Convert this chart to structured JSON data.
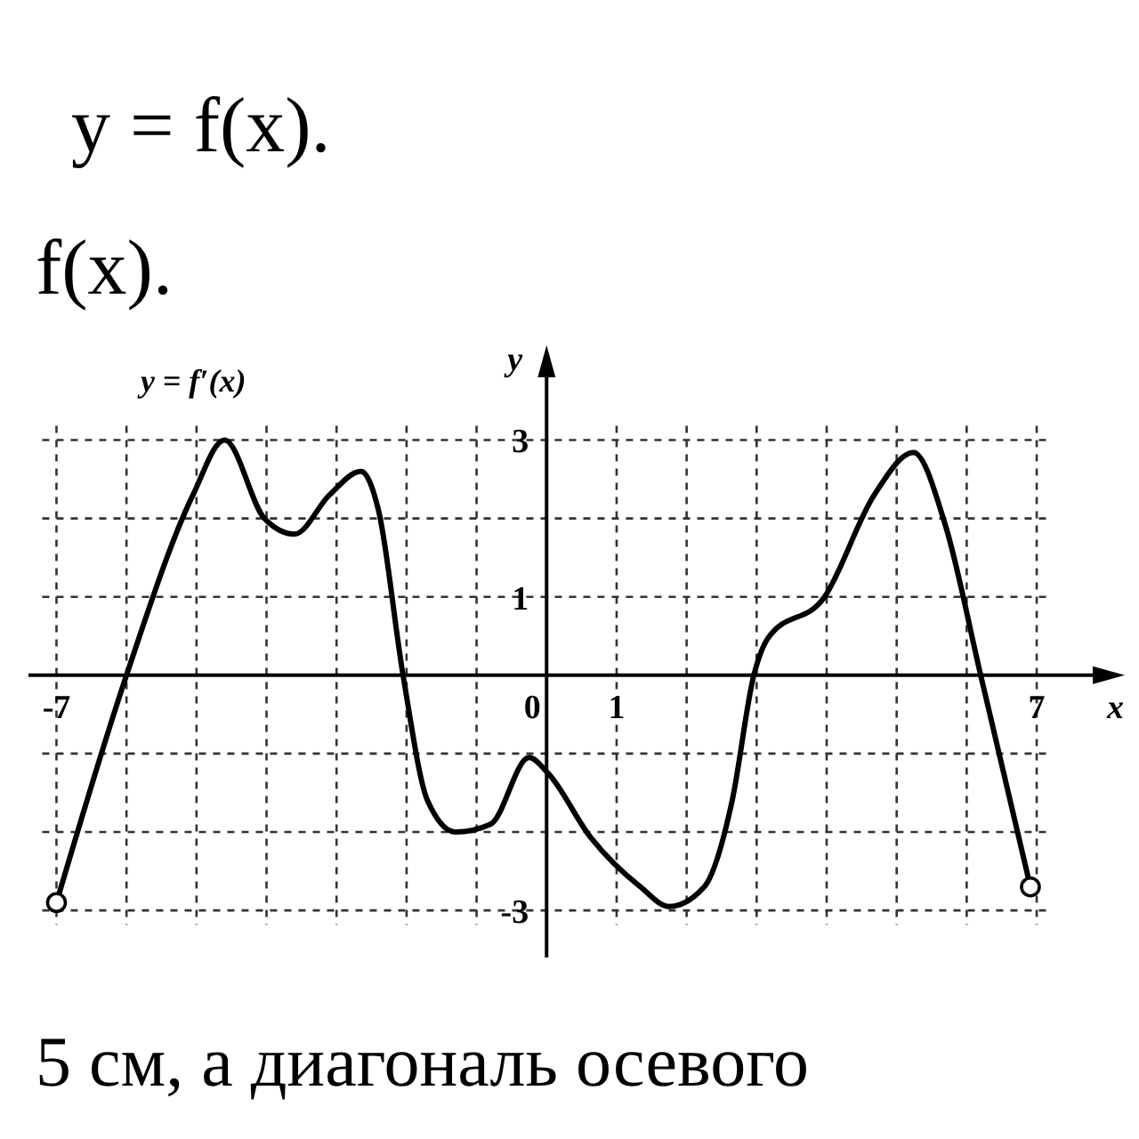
{
  "chart_data": {
    "type": "line",
    "title": "y = f′(x)",
    "xlabel": "x",
    "ylabel": "y",
    "annotations": [
      "y = f(x).",
      "f(x).",
      "5 см, а диагональ осевого"
    ],
    "xlim": [
      -7.4,
      7.8
    ],
    "ylim": [
      -3.6,
      3.8
    ],
    "xticks": [
      -7,
      {
        "value": -6,
        "label": null
      },
      {
        "value": -5,
        "label": null
      },
      {
        "value": -4,
        "label": null
      },
      {
        "value": -3,
        "label": null
      },
      {
        "value": -2,
        "label": null
      },
      {
        "value": -1,
        "label": null
      },
      0,
      1,
      {
        "value": 2,
        "label": null
      },
      {
        "value": 3,
        "label": null
      },
      {
        "value": 4,
        "label": null
      },
      {
        "value": 5,
        "label": null
      },
      {
        "value": 6,
        "label": null
      },
      7
    ],
    "yticks": [
      -3,
      {
        "value": -2,
        "label": null
      },
      {
        "value": -1,
        "label": null
      },
      {
        "value": 2,
        "label": null
      },
      1,
      3
    ],
    "grid": true,
    "line_style": "solid",
    "series": [
      {
        "type": "line",
        "color": "#000000",
        "x": [
          -7,
          -6,
          -5.05,
          -4.6,
          -4.03,
          -3.6,
          -3.1,
          -2.65,
          -2.4,
          -2.05,
          -1.7,
          -1.3,
          -0.8,
          -0.25,
          0.02,
          0.63,
          1.34,
          1.75,
          2.25,
          2.65,
          2.96,
          3.16,
          3.97,
          4.68,
          5.24,
          5.69,
          6.2,
          6.91
        ],
        "values": [
          -2.9,
          0,
          2.3,
          3,
          2,
          1.8,
          2.3,
          2.6,
          2.1,
          0,
          -1.6,
          -2,
          -1.9,
          -1.05,
          -1.25,
          -2.07,
          -2.7,
          -2.95,
          -2.7,
          -1.6,
          0,
          0.47,
          1,
          2.3,
          2.84,
          1.93,
          0,
          -2.7
        ]
      },
      {
        "type": "scatter",
        "marker": "circle",
        "color": "#000000",
        "x": [
          -7,
          6.91
        ],
        "values": [
          -2.9,
          -2.7
        ]
      }
    ]
  }
}
